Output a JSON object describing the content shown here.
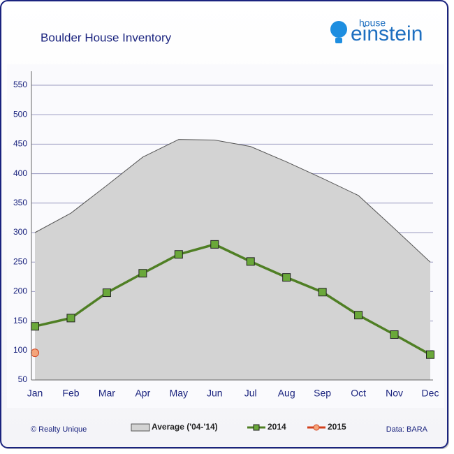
{
  "chart_data": {
    "type": "line",
    "title": "Boulder House Inventory",
    "logo": {
      "small": "house",
      "big": "einstein"
    },
    "credit": "© Realty Unique",
    "source": "Data: BARA",
    "categories": [
      "Jan",
      "Feb",
      "Mar",
      "Apr",
      "May",
      "Jun",
      "Jul",
      "Aug",
      "Sep",
      "Oct",
      "Nov",
      "Dec"
    ],
    "series": [
      {
        "name": "Average ('04-'14)",
        "kind": "area",
        "color": "#d3d3d3",
        "values": [
          300,
          333,
          380,
          428,
          458,
          457,
          446,
          420,
          392,
          363,
          307,
          250
        ]
      },
      {
        "name": "2014",
        "kind": "line",
        "color": "#4f7f24",
        "marker_color": "#6aa83a",
        "marker": "square",
        "values": [
          141,
          155,
          198,
          231,
          263,
          280,
          251,
          224,
          199,
          160,
          127,
          93
        ]
      },
      {
        "name": "2015",
        "kind": "line",
        "color": "#d2401c",
        "marker_color": "#f4a47a",
        "marker": "circle",
        "values": [
          96,
          null,
          null,
          null,
          null,
          null,
          null,
          null,
          null,
          null,
          null,
          null
        ]
      }
    ],
    "ylim": [
      50,
      550
    ],
    "yticks": [
      50,
      100,
      150,
      200,
      250,
      300,
      350,
      400,
      450,
      500,
      550
    ],
    "grid": true
  }
}
